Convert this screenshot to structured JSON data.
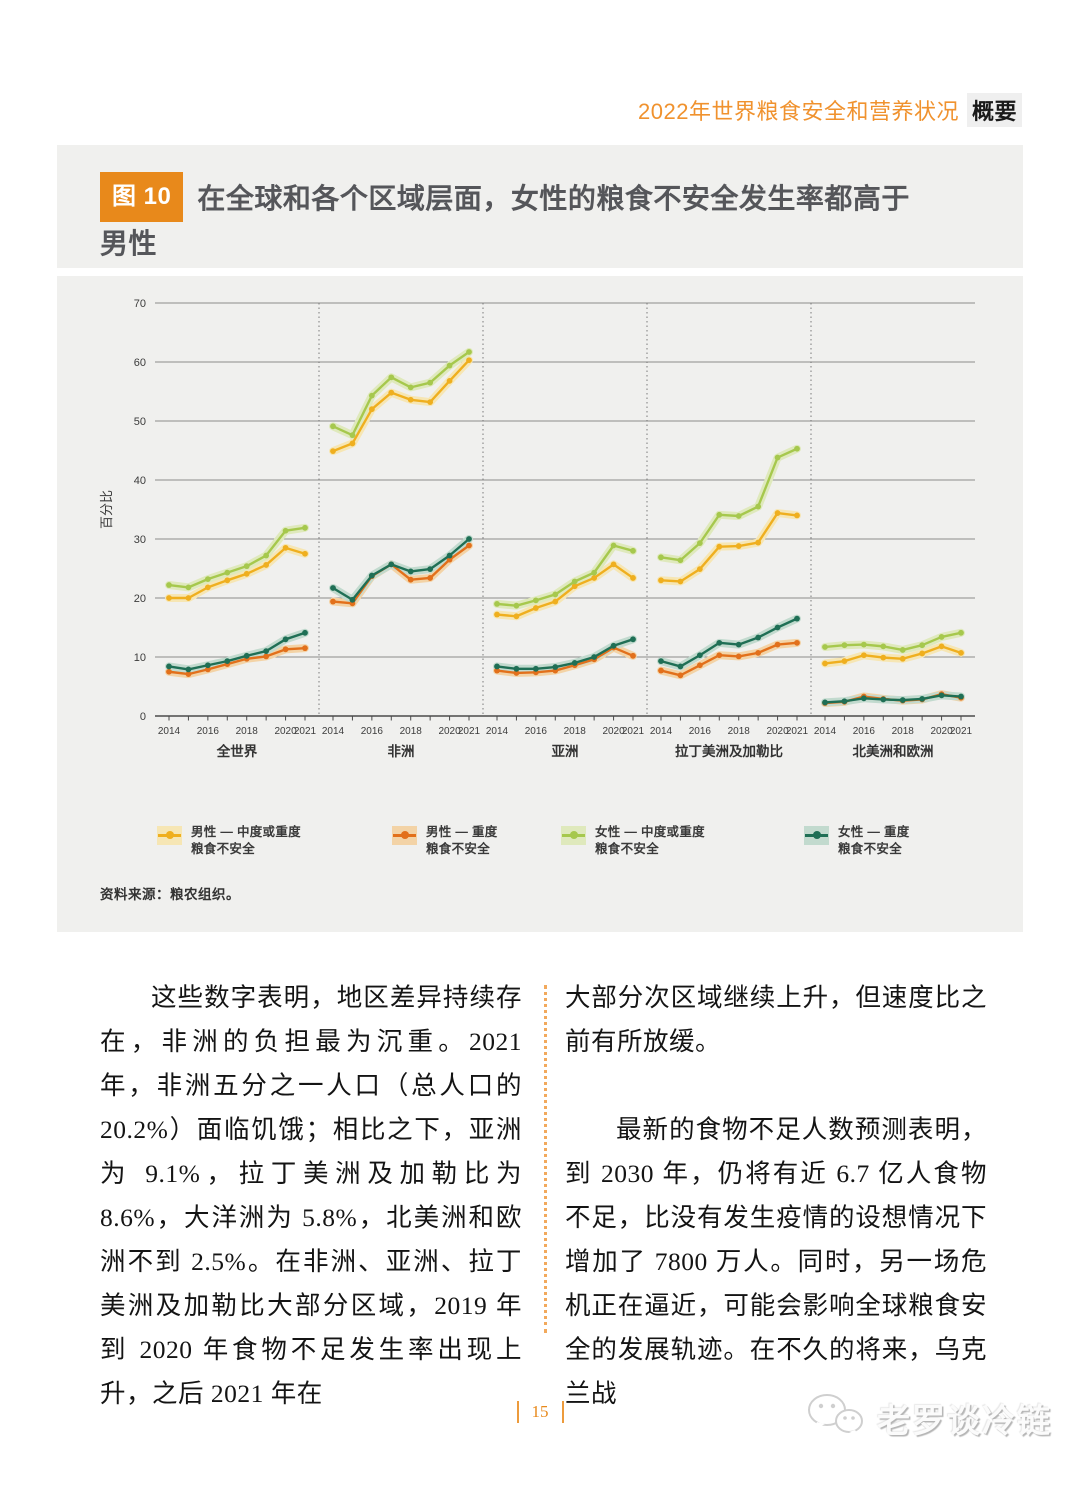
{
  "colors": {
    "accent_orange": "#E8891B",
    "header_orange": "#F0922E",
    "figure_background": "#F0F0EE",
    "divider_orange": "#F2A95C",
    "men_moderate_severe": "#EFAF1F",
    "men_severe": "#E2701B",
    "women_moderate_severe": "#A6C84D",
    "women_severe": "#1F6F55"
  },
  "header": {
    "title": "2022年世界粮食安全和营养状况",
    "badge": "概要"
  },
  "figure": {
    "badge": "图 10",
    "title": "在全球和各个区域层面，女性的粮食不安全发生率都高于男性",
    "source": "资料来源：粮农组织。",
    "legend": {
      "items": [
        {
          "line1": "男性 — 中度或重度",
          "line2": "粮食不安全"
        },
        {
          "line1": "男性 — 重度",
          "line2": "粮食不安全"
        },
        {
          "line1": "女性 — 中度或重度",
          "line2": "粮食不安全"
        },
        {
          "line1": "女性 — 重度",
          "line2": "粮食不安全"
        }
      ]
    }
  },
  "chart_data": {
    "type": "line",
    "title": "在全球和各个区域层面，女性的粮食不安全发生率都高于男性",
    "ylabel": "百分比",
    "ylim": [
      0,
      70
    ],
    "yticks": [
      0,
      10,
      20,
      30,
      40,
      50,
      60,
      70
    ],
    "grid": true,
    "legend_position": "bottom",
    "x": [
      2014,
      2015,
      2016,
      2017,
      2018,
      2019,
      2020,
      2021
    ],
    "x_tick_labels": [
      "2014",
      "2016",
      "2018",
      "2020",
      "2021"
    ],
    "x_tick_positions": [
      0,
      2,
      4,
      6,
      7
    ],
    "series_meta": [
      {
        "key": "men_moderate_severe",
        "name": "男性 — 中度或重度粮食不安全",
        "color": "#EFAF1F",
        "band": "#F6E6B4"
      },
      {
        "key": "men_severe",
        "name": "男性 — 重度粮食不安全",
        "color": "#E2701B",
        "band": "#F3D3A6"
      },
      {
        "key": "women_moderate_severe",
        "name": "女性 — 中度或重度粮食不安全",
        "color": "#A6C84D",
        "band": "#DFE9BC"
      },
      {
        "key": "women_severe",
        "name": "女性 — 重度粮食不安全",
        "color": "#1F6F55",
        "band": "#C2DACE"
      }
    ],
    "regions": [
      {
        "label": "全世界",
        "series": {
          "men_moderate_severe": [
            20.0,
            20.0,
            21.8,
            23.0,
            24.1,
            25.6,
            28.5,
            27.5
          ],
          "men_severe": [
            7.5,
            7.1,
            7.9,
            8.8,
            9.7,
            10.1,
            11.3,
            11.5
          ],
          "women_moderate_severe": [
            22.2,
            21.8,
            23.2,
            24.3,
            25.4,
            27.2,
            31.4,
            31.9
          ],
          "women_severe": [
            8.4,
            7.9,
            8.6,
            9.3,
            10.2,
            11.0,
            13.0,
            14.1
          ]
        }
      },
      {
        "label": "非洲",
        "series": {
          "men_moderate_severe": [
            44.9,
            46.2,
            52.0,
            54.8,
            53.6,
            53.2,
            56.8,
            60.3
          ],
          "men_severe": [
            19.4,
            19.1,
            23.7,
            25.7,
            23.1,
            23.4,
            26.5,
            28.9
          ],
          "women_moderate_severe": [
            49.1,
            47.6,
            54.3,
            57.4,
            55.7,
            56.5,
            59.4,
            61.7
          ],
          "women_severe": [
            21.7,
            19.7,
            23.8,
            25.7,
            24.5,
            24.9,
            27.2,
            30.0
          ]
        }
      },
      {
        "label": "亚洲",
        "series": {
          "men_moderate_severe": [
            17.2,
            16.9,
            18.3,
            19.4,
            22.0,
            23.4,
            25.7,
            23.4
          ],
          "men_severe": [
            7.7,
            7.3,
            7.4,
            7.7,
            8.6,
            9.6,
            11.6,
            10.2
          ],
          "women_moderate_severe": [
            19.0,
            18.7,
            19.6,
            20.6,
            22.8,
            24.3,
            28.9,
            28.0
          ],
          "women_severe": [
            8.4,
            8.0,
            8.0,
            8.3,
            9.0,
            10.0,
            11.9,
            13.0
          ]
        }
      },
      {
        "label": "拉丁美洲及加勒比",
        "series": {
          "men_moderate_severe": [
            23.0,
            22.8,
            24.9,
            28.7,
            28.8,
            29.4,
            34.4,
            34.0
          ],
          "men_severe": [
            7.7,
            6.9,
            8.6,
            10.3,
            10.1,
            10.7,
            12.1,
            12.4
          ],
          "women_moderate_severe": [
            26.9,
            26.4,
            29.3,
            34.1,
            33.9,
            35.5,
            43.8,
            45.3
          ],
          "women_severe": [
            9.3,
            8.4,
            10.3,
            12.4,
            12.1,
            13.3,
            15.0,
            16.5
          ]
        }
      },
      {
        "label": "北美洲和欧洲",
        "series": {
          "men_moderate_severe": [
            8.9,
            9.3,
            10.3,
            9.9,
            9.7,
            10.6,
            11.8,
            10.7
          ],
          "men_severe": [
            2.2,
            2.4,
            3.3,
            2.9,
            2.6,
            2.8,
            3.7,
            3.1
          ],
          "women_moderate_severe": [
            11.7,
            12.0,
            12.1,
            11.8,
            11.2,
            12.0,
            13.4,
            14.1
          ],
          "women_severe": [
            2.3,
            2.5,
            3.0,
            2.8,
            2.7,
            2.9,
            3.5,
            3.3
          ]
        }
      }
    ]
  },
  "body": {
    "left_paragraph": "这些数字表明，地区差异持续存在，非洲的负担最为沉重。2021 年，非洲五分之一人口（总人口的 20.2%）面临饥饿；相比之下，亚洲为 9.1%，拉丁美洲及加勒比为 8.6%，大洋洲为 5.8%，北美洲和欧洲不到 2.5%。在非洲、亚洲、拉丁美洲及加勒比大部分区域，2019 年到 2020 年食物不足发生率出现上升，之后 2021 年在",
    "right_paragraph_1": "大部分次区域继续上升，但速度比之前有所放缓。",
    "right_paragraph_2": "最新的食物不足人数预测表明，到 2030 年，仍将有近 6.7 亿人食物不足，比没有发生疫情的设想情况下增加了 7800 万人。同时，另一场危机正在逼近，可能会影响全球粮食安全的发展轨迹。在不久的将来，乌克兰战"
  },
  "footer": {
    "page_number": "15",
    "watermark": "老罗谈冷链"
  }
}
